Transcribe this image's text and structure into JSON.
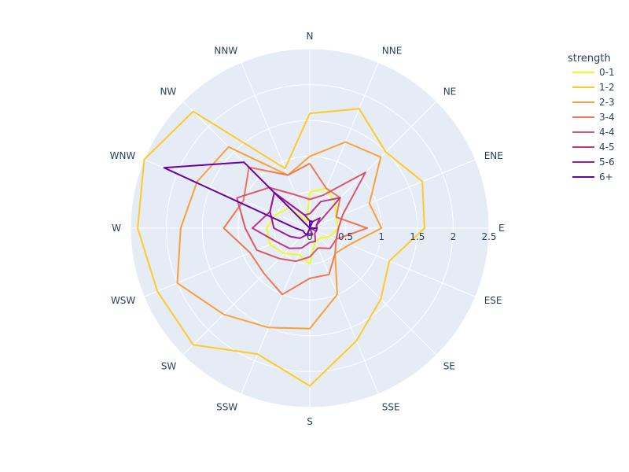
{
  "chart_data": {
    "type": "line",
    "subtype": "polar",
    "angular_categories": [
      "N",
      "NNE",
      "NE",
      "ENE",
      "E",
      "ESE",
      "SE",
      "SSE",
      "S",
      "SSW",
      "SW",
      "WSW",
      "W",
      "WNW",
      "NW",
      "NNW"
    ],
    "radial_range": [
      0,
      2.5
    ],
    "radial_ticks": [
      "0",
      "0.5",
      "1",
      "1.5",
      "2",
      "2.5"
    ],
    "radial_tick_values": [
      0,
      0.5,
      1,
      1.5,
      2,
      2.5
    ],
    "legend": {
      "title": "strength",
      "placement": "top-right"
    },
    "grid": true,
    "series": [
      {
        "name": "0-1",
        "color": "#f0f921",
        "values": [
          0.5,
          0.6,
          0.5,
          0.4,
          0.4,
          0.3,
          0.2,
          0.2,
          0.5,
          0.4,
          0.5,
          0.6,
          0.6,
          0.5,
          0.4,
          0.1
        ]
      },
      {
        "name": "1-2",
        "color": "#fdca26",
        "values": [
          1.6,
          1.8,
          1.5,
          1.7,
          1.6,
          1.2,
          1.4,
          1.7,
          2.2,
          1.9,
          2.3,
          2.3,
          2.4,
          2.5,
          2.3,
          0.9
        ]
      },
      {
        "name": "2-3",
        "color": "#fb9f3a",
        "values": [
          1.0,
          1.3,
          1.4,
          0.9,
          1.0,
          0.6,
          0.5,
          1.0,
          1.4,
          1.5,
          1.7,
          2.0,
          1.8,
          1.7,
          1.6,
          0.8
        ]
      },
      {
        "name": "3-4",
        "color": "#ed7953",
        "values": [
          0.9,
          0.6,
          0.6,
          0.4,
          0.8,
          0.4,
          0.5,
          0.7,
          0.7,
          1.0,
          0.9,
          0.9,
          1.2,
          1.0,
          1.2,
          0.8
        ]
      },
      {
        "name": "4-4",
        "color": "#d8576b",
        "values": [
          0.4,
          0.5,
          1.1,
          0.5,
          0.4,
          0.4,
          0.4,
          0.3,
          0.4,
          0.5,
          0.6,
          0.8,
          0.9,
          1.1,
          0.8,
          0.5
        ]
      },
      {
        "name": "4-5",
        "color": "#bd3786",
        "values": [
          0.2,
          0.4,
          0.6,
          0.1,
          0.1,
          0.1,
          0.1,
          0.2,
          0.2,
          0.3,
          0.4,
          0.5,
          0.8,
          0.6,
          0.7,
          0.2
        ]
      },
      {
        "name": "5-6",
        "color": "#9c179e",
        "values": [
          0.1,
          0.1,
          0.2,
          0.1,
          0.1,
          0.1,
          0.0,
          0.1,
          0.1,
          0.1,
          0.2,
          0.3,
          0.5,
          0.6,
          0.7,
          0.2
        ]
      },
      {
        "name": "6+",
        "color": "#6a00a8",
        "values": [
          0.1,
          0.1,
          0.0,
          0.0,
          0.1,
          0.0,
          0.0,
          0.0,
          0.0,
          0.1,
          0.1,
          0.1,
          0.2,
          2.2,
          1.3,
          0.0
        ]
      }
    ]
  }
}
